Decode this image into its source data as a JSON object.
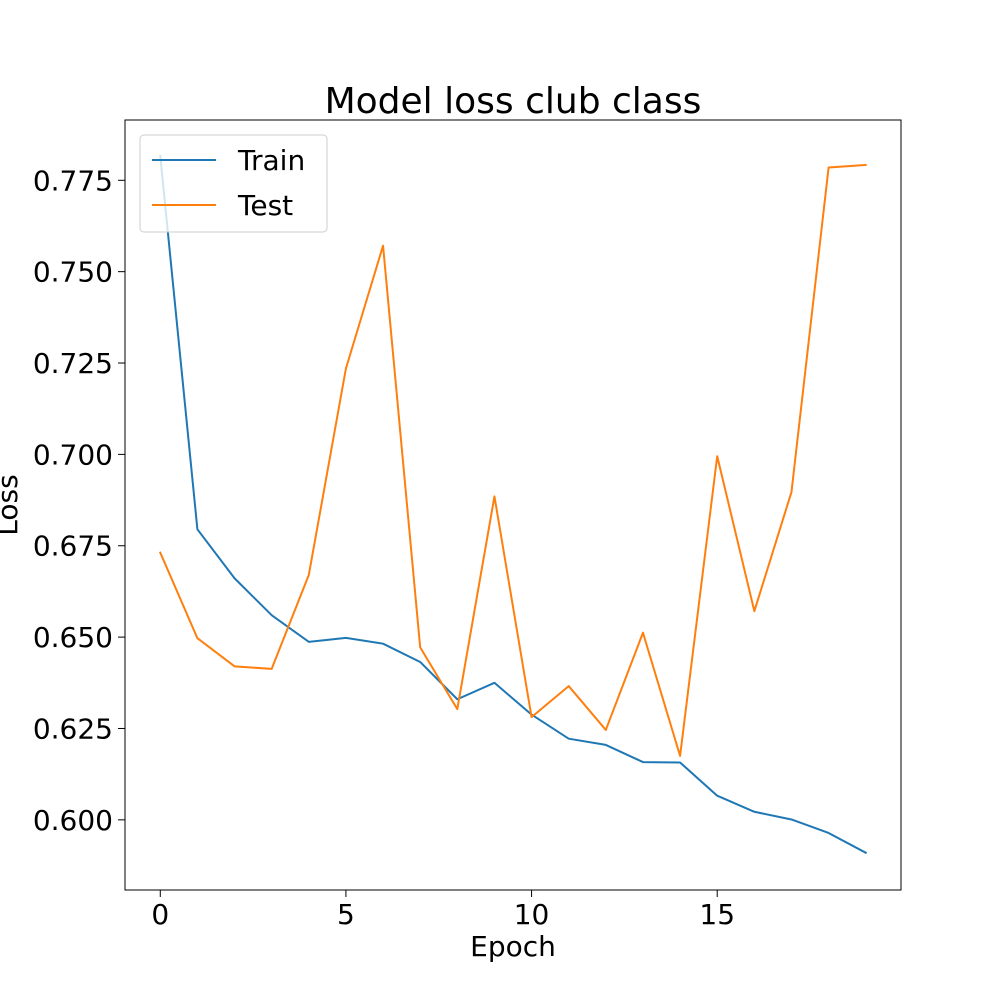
{
  "chart_data": {
    "type": "line",
    "title": "Model loss club class",
    "xlabel": "Epoch",
    "ylabel": "Loss",
    "xlim": [
      -0.95,
      19.95
    ],
    "ylim": [
      0.5808,
      0.7915
    ],
    "xticks": [
      0,
      5,
      10,
      15
    ],
    "xtick_labels": [
      "0",
      "5",
      "10",
      "15"
    ],
    "yticks": [
      0.6,
      0.625,
      0.65,
      0.675,
      0.7,
      0.725,
      0.75,
      0.775
    ],
    "ytick_labels": [
      "0.600",
      "0.625",
      "0.650",
      "0.675",
      "0.700",
      "0.725",
      "0.750",
      "0.775"
    ],
    "grid": false,
    "legend_position": "upper-left",
    "x": [
      0,
      1,
      2,
      3,
      4,
      5,
      6,
      7,
      8,
      9,
      10,
      11,
      12,
      13,
      14,
      15,
      16,
      17,
      18,
      19
    ],
    "series": [
      {
        "name": "Train",
        "color": "#1f77b4",
        "values": [
          0.7817,
          0.6795,
          0.6661,
          0.656,
          0.6487,
          0.6498,
          0.6482,
          0.6432,
          0.633,
          0.6375,
          0.6288,
          0.6222,
          0.6205,
          0.6158,
          0.6157,
          0.6066,
          0.6022,
          0.6001,
          0.5964,
          0.591
        ]
      },
      {
        "name": "Test",
        "color": "#ff7f0e",
        "values": [
          0.6731,
          0.6497,
          0.642,
          0.6413,
          0.667,
          0.7235,
          0.7571,
          0.6472,
          0.6303,
          0.6885,
          0.6281,
          0.6366,
          0.6246,
          0.6512,
          0.6175,
          0.6995,
          0.6571,
          0.6897,
          0.7785,
          0.7792
        ]
      }
    ]
  }
}
